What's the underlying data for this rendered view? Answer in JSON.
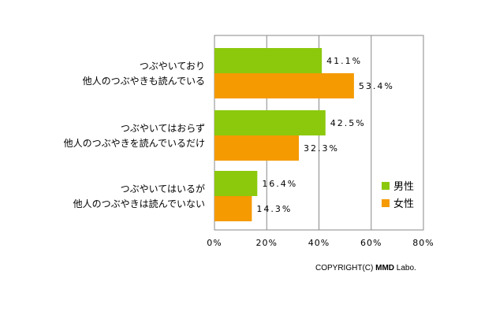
{
  "chart_data": {
    "type": "bar",
    "orientation": "horizontal",
    "categories": [
      [
        "つぶやいており",
        "他人のつぶやきも読んでいる"
      ],
      [
        "つぶやいてはおらず",
        "他人のつぶやきを読んでいるだけ"
      ],
      [
        "つぶやいてはいるが",
        "他人のつぶやきは読んでいない"
      ]
    ],
    "series": [
      {
        "name": "男性",
        "color": "#8cc90d",
        "values": [
          41.1,
          42.5,
          16.4
        ],
        "labels": [
          "41.1%",
          "42.5%",
          "16.4%"
        ]
      },
      {
        "name": "女性",
        "color": "#f59a00",
        "values": [
          53.4,
          32.3,
          14.3
        ],
        "labels": [
          "53.4%",
          "32.3%",
          "14.3%"
        ]
      }
    ],
    "xlim": [
      0,
      80
    ],
    "xticks": [
      0,
      20,
      40,
      60,
      80
    ],
    "xtick_labels": [
      "0%",
      "20%",
      "40%",
      "60%",
      "80%"
    ],
    "grid": "vertical",
    "legend": "bottom-right",
    "title": "",
    "xlabel": "",
    "ylabel": ""
  },
  "footer": {
    "copyright_prefix": "COPYRIGHT(C) ",
    "copyright_brand": "MMD",
    "copyright_suffix": " Labo."
  }
}
